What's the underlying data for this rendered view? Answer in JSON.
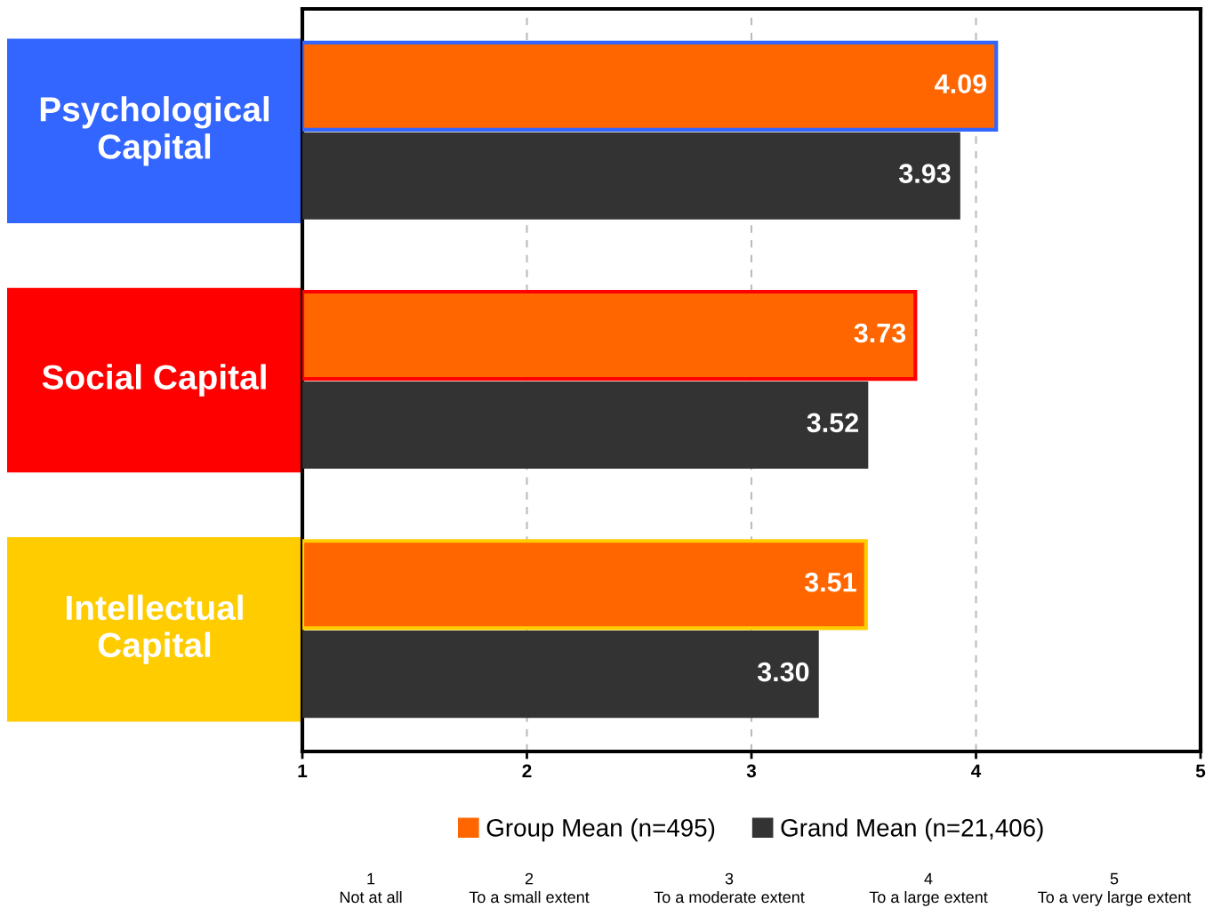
{
  "chart_data": {
    "type": "bar",
    "orientation": "horizontal",
    "categories": [
      "Psychological\nCapital",
      "Social Capital",
      "Intellectual\nCapital"
    ],
    "series": [
      {
        "name": "Group Mean (n=495)",
        "color": "#ff6600",
        "values": [
          4.09,
          3.73,
          3.51
        ],
        "value_labels": [
          "4.09",
          "3.73",
          "3.51"
        ]
      },
      {
        "name": "Grand Mean (n=21,406)",
        "color": "#333333",
        "values": [
          3.93,
          3.52,
          3.3
        ],
        "value_labels": [
          "3.93",
          "3.52",
          "3.30"
        ]
      }
    ],
    "xlim": [
      1,
      5
    ],
    "xticks": [
      1,
      2,
      3,
      4,
      5
    ],
    "grid": "x",
    "legend": "bottom",
    "annotations": [
      "1\nNot at all",
      "2\nTo a small extent",
      "3\nTo a moderate extent",
      "4\nTo a large extent",
      "5\nTo a very large extent"
    ]
  }
}
